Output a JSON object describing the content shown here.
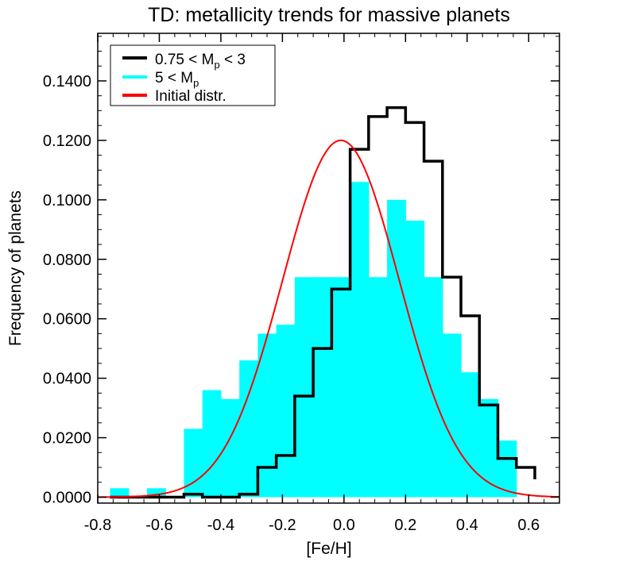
{
  "chart_data": {
    "type": "bar",
    "title": "TD: metallicity trends for massive planets",
    "xlabel": "[Fe/H]",
    "ylabel": "Frequency of planets",
    "xlim": [
      -0.8,
      0.7
    ],
    "ylim": [
      -0.002,
      0.156
    ],
    "xticks": [
      -0.8,
      -0.6,
      -0.4,
      -0.2,
      0.0,
      0.2,
      0.4,
      0.6
    ],
    "xtick_labels": [
      "-0.8",
      "-0.6",
      "-0.4",
      "-0.2",
      "0.0",
      "0.2",
      "0.4",
      "0.6"
    ],
    "yticks": [
      0.0,
      0.02,
      0.04,
      0.06,
      0.08,
      0.1,
      0.12,
      0.14
    ],
    "ytick_labels": [
      "0.0000",
      "0.0200",
      "0.0400",
      "0.0600",
      "0.0800",
      "0.1000",
      "0.1200",
      "0.1400"
    ],
    "bin_edges": [
      -0.76,
      -0.7,
      -0.64,
      -0.58,
      -0.52,
      -0.46,
      -0.4,
      -0.34,
      -0.28,
      -0.22,
      -0.16,
      -0.1,
      -0.04,
      0.02,
      0.08,
      0.14,
      0.2,
      0.26,
      0.32,
      0.38,
      0.44,
      0.5,
      0.56,
      0.62
    ],
    "legend_position": "top-left",
    "series": [
      {
        "name": "0.75 < M",
        "name_sub": "p",
        "name_tail": " < 3",
        "style": "step",
        "color": "#000000",
        "values": [
          0.0,
          0.0,
          0.0,
          0.0,
          0.001,
          0.0,
          0.0,
          0.001,
          0.01,
          0.014,
          0.034,
          0.05,
          0.07,
          0.117,
          0.128,
          0.131,
          0.126,
          0.113,
          0.074,
          0.061,
          0.031,
          0.013,
          0.01,
          0.006
        ]
      },
      {
        "name": "5 < M",
        "name_sub": "p",
        "name_tail": "",
        "style": "filled-bar",
        "color": "#00ffff",
        "values": [
          0.003,
          0.0,
          0.003,
          0.0,
          0.023,
          0.036,
          0.033,
          0.046,
          0.055,
          0.058,
          0.074,
          0.074,
          0.074,
          0.106,
          0.074,
          0.1,
          0.093,
          0.074,
          0.055,
          0.042,
          0.033,
          0.019,
          0.0,
          0.0
        ]
      },
      {
        "name": "Initial distr.",
        "name_sub": "",
        "name_tail": "",
        "style": "curve",
        "color": "#ff0000",
        "mean": -0.01,
        "sigma": 0.19,
        "peak": 0.12
      }
    ]
  }
}
